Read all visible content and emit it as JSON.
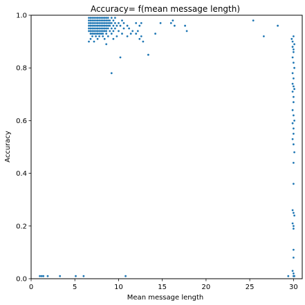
{
  "chart_data": {
    "type": "scatter",
    "title": "Accuracy= f(mean message length)",
    "xlabel": "Mean message length",
    "ylabel": "Accuracy",
    "xlim": [
      0,
      31
    ],
    "ylim": [
      0,
      1
    ],
    "xticks": [
      "0",
      "5",
      "10",
      "15",
      "20",
      "25",
      "30"
    ],
    "yticks": [
      "0.0",
      "0.2",
      "0.4",
      "0.6",
      "0.8",
      "1.0"
    ],
    "grid": false,
    "marker_color": "#1f77b4",
    "points": [
      [
        6.6,
        0.99
      ],
      [
        6.8,
        0.99
      ],
      [
        7.0,
        0.99
      ],
      [
        7.2,
        0.99
      ],
      [
        7.4,
        0.99
      ],
      [
        7.6,
        0.99
      ],
      [
        7.8,
        0.99
      ],
      [
        8.0,
        0.99
      ],
      [
        8.2,
        0.99
      ],
      [
        8.4,
        0.99
      ],
      [
        8.6,
        0.99
      ],
      [
        8.8,
        0.99
      ],
      [
        9.2,
        0.99
      ],
      [
        9.6,
        0.99
      ],
      [
        6.6,
        0.98
      ],
      [
        6.8,
        0.98
      ],
      [
        7.0,
        0.98
      ],
      [
        7.2,
        0.98
      ],
      [
        7.4,
        0.98
      ],
      [
        7.6,
        0.98
      ],
      [
        7.8,
        0.98
      ],
      [
        8.0,
        0.98
      ],
      [
        8.2,
        0.98
      ],
      [
        8.4,
        0.98
      ],
      [
        8.6,
        0.98
      ],
      [
        8.8,
        0.98
      ],
      [
        9.0,
        0.98
      ],
      [
        9.4,
        0.98
      ],
      [
        10.4,
        0.98
      ],
      [
        6.6,
        0.97
      ],
      [
        6.8,
        0.97
      ],
      [
        7.0,
        0.97
      ],
      [
        7.2,
        0.97
      ],
      [
        7.4,
        0.97
      ],
      [
        7.6,
        0.97
      ],
      [
        7.8,
        0.97
      ],
      [
        8.0,
        0.97
      ],
      [
        8.2,
        0.97
      ],
      [
        8.4,
        0.97
      ],
      [
        8.6,
        0.97
      ],
      [
        8.8,
        0.97
      ],
      [
        9.0,
        0.97
      ],
      [
        9.2,
        0.97
      ],
      [
        9.6,
        0.97
      ],
      [
        10.0,
        0.97
      ],
      [
        10.6,
        0.97
      ],
      [
        12.0,
        0.97
      ],
      [
        12.6,
        0.97
      ],
      [
        6.6,
        0.96
      ],
      [
        6.8,
        0.96
      ],
      [
        7.0,
        0.96
      ],
      [
        7.2,
        0.96
      ],
      [
        7.4,
        0.96
      ],
      [
        7.6,
        0.96
      ],
      [
        7.8,
        0.96
      ],
      [
        8.0,
        0.96
      ],
      [
        8.2,
        0.96
      ],
      [
        8.4,
        0.96
      ],
      [
        8.6,
        0.96
      ],
      [
        8.8,
        0.96
      ],
      [
        9.0,
        0.96
      ],
      [
        9.4,
        0.96
      ],
      [
        9.8,
        0.96
      ],
      [
        10.2,
        0.96
      ],
      [
        11.0,
        0.96
      ],
      [
        12.4,
        0.96
      ],
      [
        6.6,
        0.95
      ],
      [
        6.8,
        0.95
      ],
      [
        7.0,
        0.95
      ],
      [
        7.2,
        0.95
      ],
      [
        7.4,
        0.95
      ],
      [
        7.6,
        0.95
      ],
      [
        7.8,
        0.95
      ],
      [
        8.0,
        0.95
      ],
      [
        8.2,
        0.95
      ],
      [
        8.4,
        0.95
      ],
      [
        8.6,
        0.95
      ],
      [
        8.8,
        0.95
      ],
      [
        9.2,
        0.95
      ],
      [
        9.6,
        0.95
      ],
      [
        10.6,
        0.95
      ],
      [
        11.2,
        0.95
      ],
      [
        6.6,
        0.94
      ],
      [
        6.8,
        0.94
      ],
      [
        7.0,
        0.94
      ],
      [
        7.2,
        0.94
      ],
      [
        7.4,
        0.94
      ],
      [
        7.6,
        0.94
      ],
      [
        7.8,
        0.94
      ],
      [
        8.0,
        0.94
      ],
      [
        8.2,
        0.94
      ],
      [
        8.4,
        0.94
      ],
      [
        8.6,
        0.94
      ],
      [
        9.0,
        0.94
      ],
      [
        9.4,
        0.94
      ],
      [
        10.0,
        0.94
      ],
      [
        11.6,
        0.94
      ],
      [
        12.2,
        0.94
      ],
      [
        6.8,
        0.93
      ],
      [
        7.0,
        0.93
      ],
      [
        7.2,
        0.93
      ],
      [
        7.4,
        0.93
      ],
      [
        7.6,
        0.93
      ],
      [
        7.8,
        0.93
      ],
      [
        8.0,
        0.93
      ],
      [
        8.2,
        0.93
      ],
      [
        8.6,
        0.93
      ],
      [
        9.2,
        0.93
      ],
      [
        10.4,
        0.93
      ],
      [
        11.4,
        0.93
      ],
      [
        12.0,
        0.93
      ],
      [
        7.0,
        0.92
      ],
      [
        7.4,
        0.92
      ],
      [
        7.8,
        0.92
      ],
      [
        8.2,
        0.92
      ],
      [
        8.8,
        0.92
      ],
      [
        9.8,
        0.92
      ],
      [
        11.0,
        0.92
      ],
      [
        12.6,
        0.92
      ],
      [
        6.8,
        0.91
      ],
      [
        7.6,
        0.91
      ],
      [
        8.4,
        0.91
      ],
      [
        9.4,
        0.91
      ],
      [
        12.4,
        0.91
      ],
      [
        6.6,
        0.9
      ],
      [
        7.2,
        0.9
      ],
      [
        8.6,
        0.89
      ],
      [
        12.8,
        0.9
      ],
      [
        10.2,
        0.84
      ],
      [
        9.2,
        0.78
      ],
      [
        13.4,
        0.85
      ],
      [
        14.8,
        0.97
      ],
      [
        14.2,
        0.93
      ],
      [
        16.0,
        0.97
      ],
      [
        16.4,
        0.96
      ],
      [
        16.2,
        0.98
      ],
      [
        17.6,
        0.96
      ],
      [
        17.8,
        0.94
      ],
      [
        25.4,
        0.98
      ],
      [
        26.6,
        0.92
      ],
      [
        28.2,
        0.96
      ],
      [
        1.0,
        0.01
      ],
      [
        1.2,
        0.01
      ],
      [
        1.4,
        0.01
      ],
      [
        1.9,
        0.01
      ],
      [
        3.3,
        0.01
      ],
      [
        5.1,
        0.01
      ],
      [
        6.0,
        0.01
      ],
      [
        10.8,
        0.01
      ],
      [
        29.8,
        0.91
      ],
      [
        29.9,
        0.9
      ],
      [
        30.0,
        0.92
      ],
      [
        30.1,
        0.89
      ],
      [
        29.9,
        0.88
      ],
      [
        30.0,
        0.87
      ],
      [
        30.0,
        0.86
      ],
      [
        29.9,
        0.84
      ],
      [
        30.0,
        0.82
      ],
      [
        30.1,
        0.8
      ],
      [
        29.9,
        0.78
      ],
      [
        30.0,
        0.76
      ],
      [
        29.9,
        0.74
      ],
      [
        30.0,
        0.73
      ],
      [
        30.1,
        0.72
      ],
      [
        29.9,
        0.71
      ],
      [
        30.0,
        0.69
      ],
      [
        30.0,
        0.67
      ],
      [
        29.9,
        0.64
      ],
      [
        30.0,
        0.62
      ],
      [
        30.1,
        0.6
      ],
      [
        29.9,
        0.59
      ],
      [
        30.0,
        0.57
      ],
      [
        30.0,
        0.55
      ],
      [
        29.9,
        0.53
      ],
      [
        30.0,
        0.51
      ],
      [
        30.1,
        0.48
      ],
      [
        30.0,
        0.44
      ],
      [
        30.0,
        0.36
      ],
      [
        29.9,
        0.26
      ],
      [
        30.0,
        0.25
      ],
      [
        30.1,
        0.24
      ],
      [
        29.9,
        0.21
      ],
      [
        30.0,
        0.2
      ],
      [
        30.0,
        0.19
      ],
      [
        30.0,
        0.11
      ],
      [
        30.0,
        0.08
      ],
      [
        29.9,
        0.03
      ],
      [
        30.0,
        0.02
      ],
      [
        30.0,
        0.01
      ],
      [
        29.4,
        0.01
      ],
      [
        30.1,
        0.01
      ]
    ]
  }
}
